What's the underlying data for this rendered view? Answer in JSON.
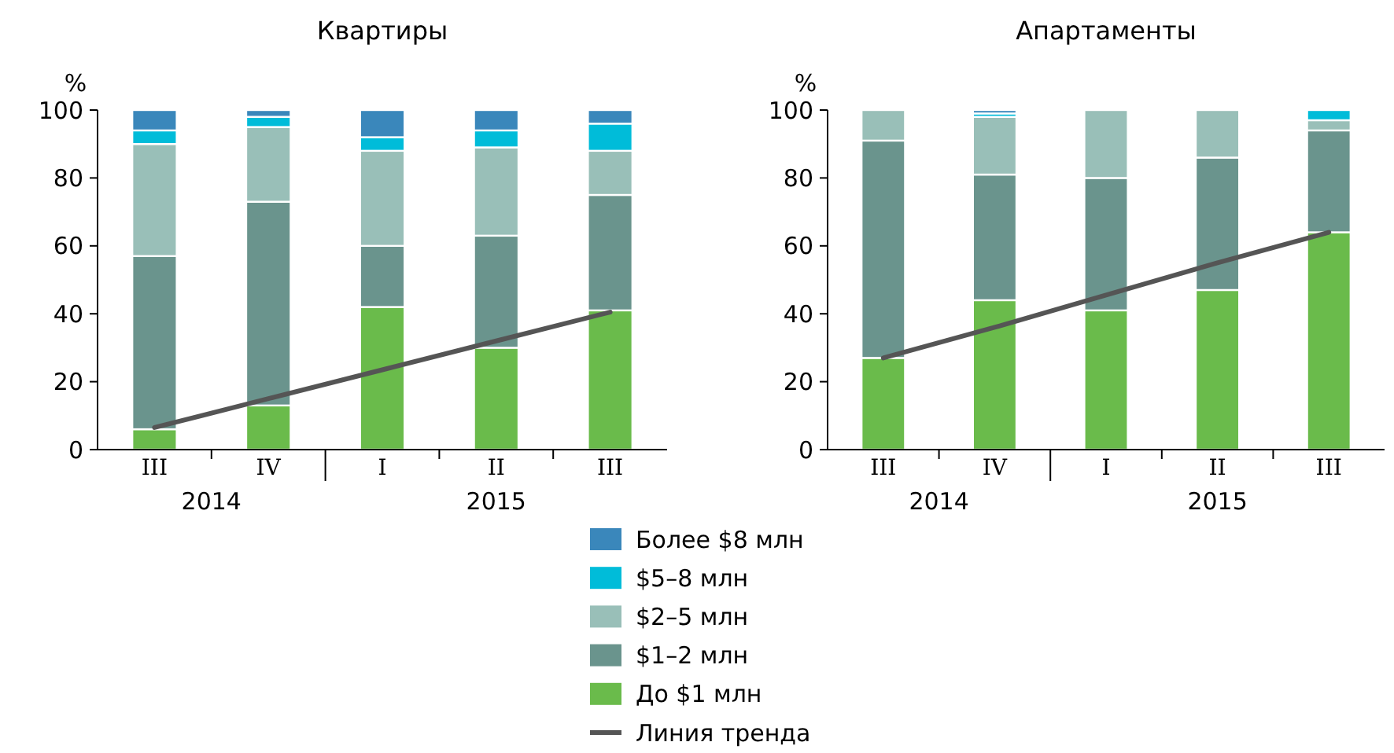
{
  "chart_data": [
    {
      "type": "bar",
      "title": "Квартиры",
      "ylabel": "%",
      "stacked": true,
      "categories": [
        "III",
        "IV",
        "I",
        "II",
        "III"
      ],
      "annotations": [
        "2014",
        "2015"
      ],
      "ylim": [
        0,
        100
      ],
      "yticks": [
        0,
        20,
        40,
        60,
        80,
        100
      ],
      "legend": "bottom",
      "series": [
        {
          "name": "До $1 млн",
          "color": "#6abb4b",
          "values": [
            6,
            13,
            42,
            30,
            41
          ]
        },
        {
          "name": "$1–2 млн",
          "color": "#6a948d",
          "values": [
            51,
            60,
            18,
            33,
            34
          ]
        },
        {
          "name": "$2–5 млн",
          "color": "#99bfb8",
          "values": [
            33,
            22,
            28,
            26,
            13
          ]
        },
        {
          "name": "$5–8 млн",
          "color": "#00bcd9",
          "values": [
            4,
            3,
            4,
            5,
            8
          ]
        },
        {
          "name": "Более $8 млн",
          "color": "#3a87bb",
          "values": [
            6,
            2,
            8,
            6,
            4
          ]
        },
        {
          "name": "Линия тренда",
          "type": "line",
          "color": "#555555",
          "values": [
            6.5,
            15,
            23.5,
            32,
            40.5
          ]
        }
      ]
    },
    {
      "type": "bar",
      "title": "Апартаменты",
      "ylabel": "%",
      "stacked": true,
      "categories": [
        "III",
        "IV",
        "I",
        "II",
        "III"
      ],
      "annotations": [
        "2014",
        "2015"
      ],
      "ylim": [
        0,
        100
      ],
      "yticks": [
        0,
        20,
        40,
        60,
        80,
        100
      ],
      "series": [
        {
          "color": "#6abb4b",
          "values": [
            27,
            44,
            41,
            47,
            64
          ]
        },
        {
          "color": "#6a948d",
          "values": [
            64,
            37,
            39,
            39,
            30
          ]
        },
        {
          "color": "#99bfb8",
          "values": [
            9,
            17,
            20,
            14,
            3
          ]
        },
        {
          "color": "#00bcd9",
          "values": [
            null,
            1,
            null,
            null,
            3
          ]
        },
        {
          "color": "#3a87bb",
          "values": [
            null,
            1,
            null,
            null,
            null
          ]
        },
        {
          "type": "line",
          "color": "#555555",
          "values": [
            27,
            36,
            45.5,
            55,
            64
          ]
        }
      ]
    }
  ]
}
